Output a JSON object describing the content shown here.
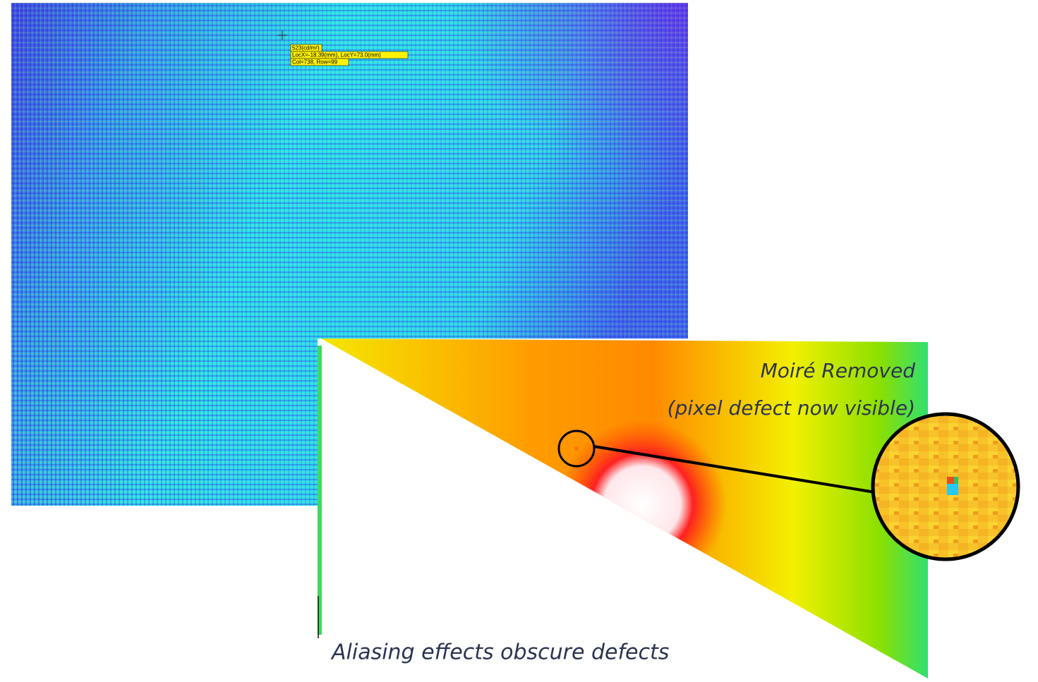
{
  "tooltip": {
    "lines": [
      "523(cd/m²)",
      "LocX=-18.39(mm), LocY=73.0(mm)",
      "Col=738, Row=99"
    ]
  },
  "after": {
    "title": "Moiré Removed",
    "subtitle": "(pixel defect now visible)"
  },
  "before": {
    "caption": "Aliasing effects obscure defects"
  }
}
